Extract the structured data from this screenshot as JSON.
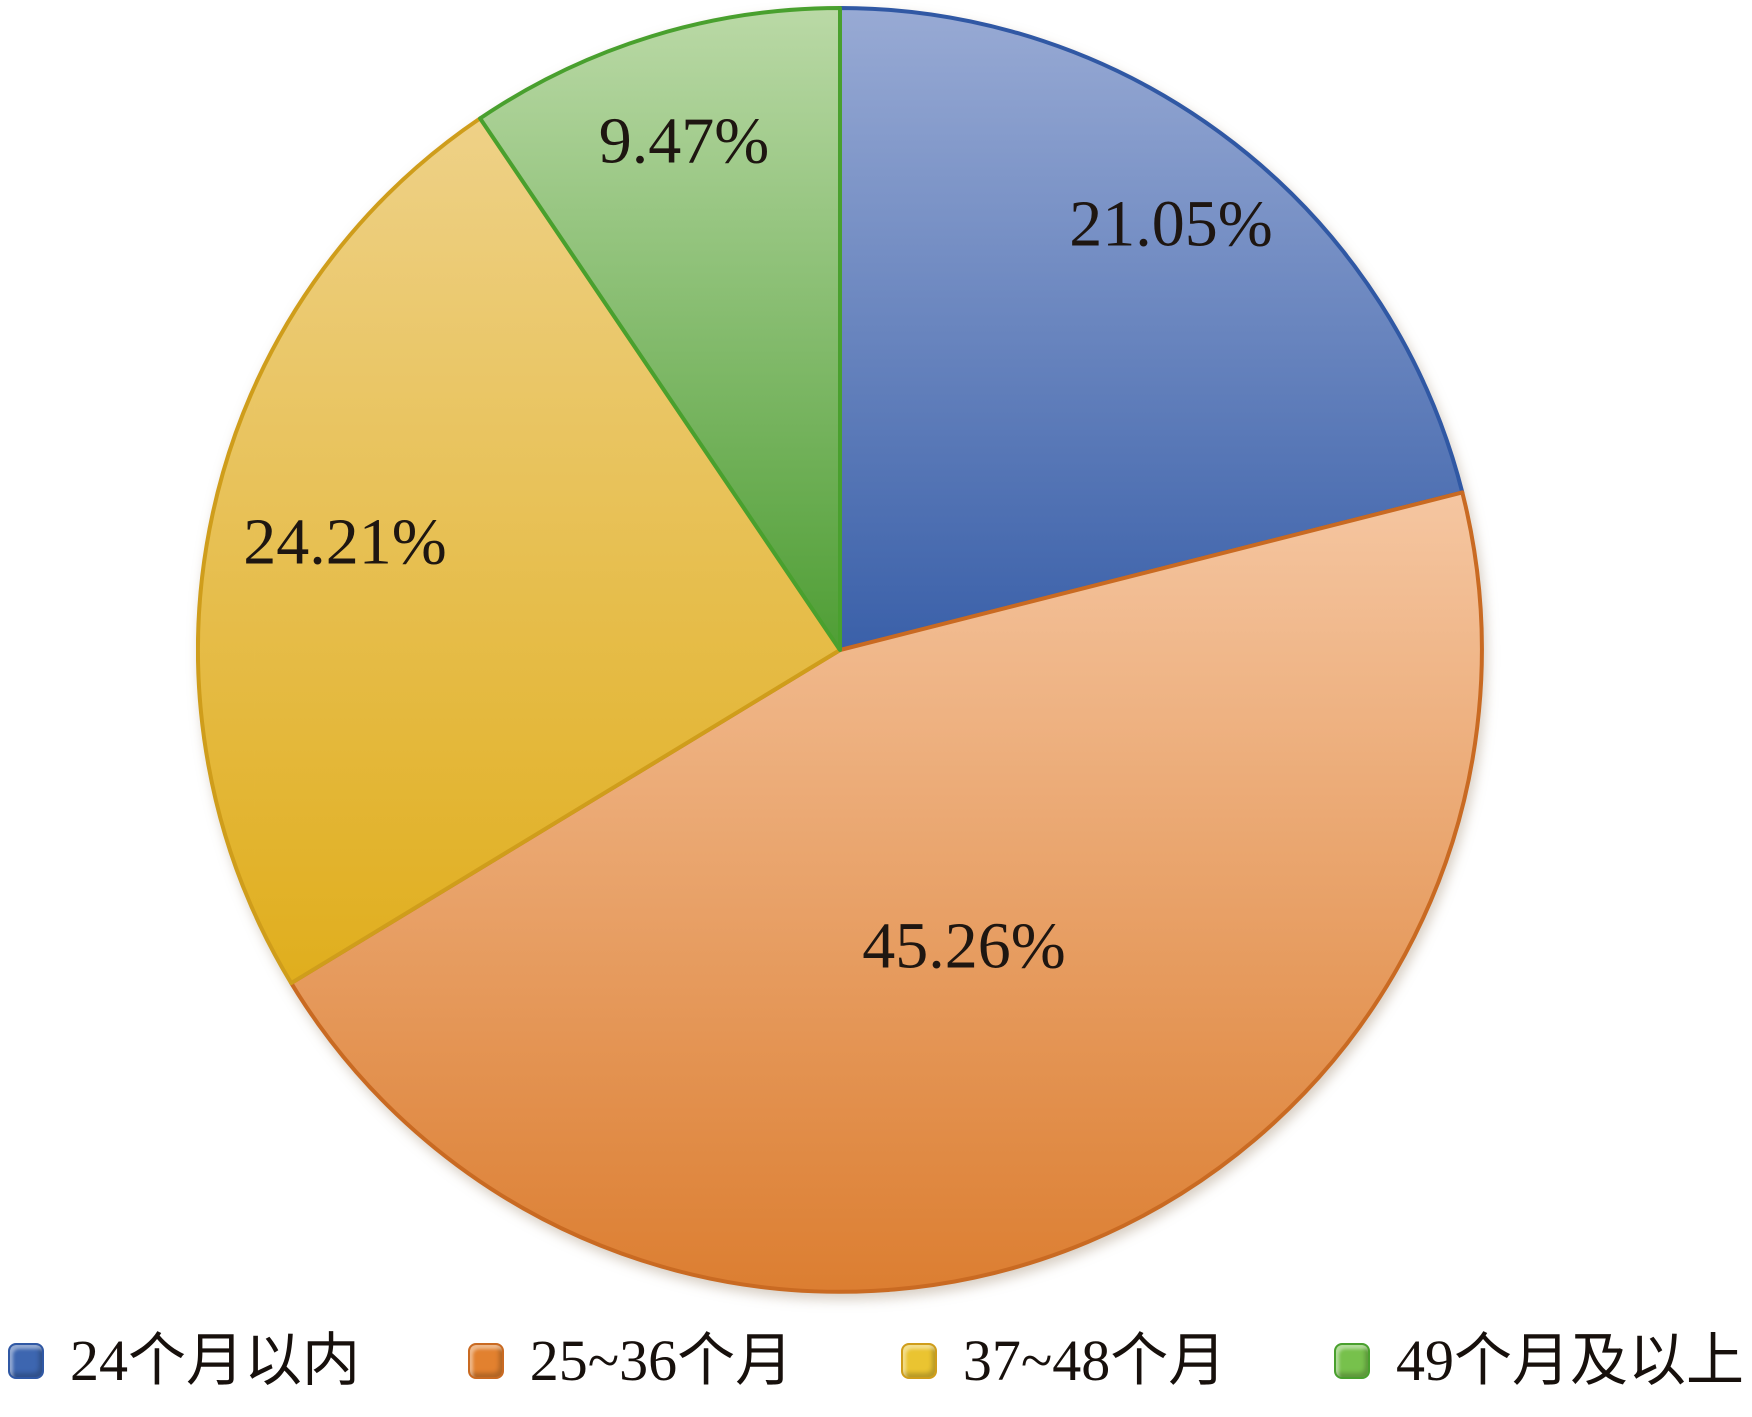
{
  "chart_data": {
    "type": "pie",
    "title": "",
    "categories": [
      "24个月以内",
      "25~36个月",
      "37~48个月",
      "49个月及以上"
    ],
    "values": [
      21.05,
      45.26,
      24.21,
      9.47
    ],
    "start_angle": "top",
    "direction": "clockwise",
    "legend_position": "bottom",
    "label_color": "#1e1611",
    "slices": [
      {
        "label": "24个月以内",
        "value": 21.05,
        "display": "21.05%",
        "fill_top": "#98aad4",
        "fill_bottom": "#3a60a9",
        "border": "#3058a4",
        "swatch": "#3d66b0"
      },
      {
        "label": "25~36个月",
        "value": 45.26,
        "display": "45.26%",
        "fill_top": "#f5c6a1",
        "fill_bottom": "#dc7e31",
        "border": "#c96a22",
        "swatch": "#e2812f"
      },
      {
        "label": "37~48个月",
        "value": 24.21,
        "display": "24.21%",
        "fill_top": "#eed187",
        "fill_bottom": "#e0ae1d",
        "border": "#cf9d1b",
        "swatch": "#eac431"
      },
      {
        "label": "49个月及以上",
        "value": 9.47,
        "display": "9.47%",
        "fill_top": "#bad9a6",
        "fill_bottom": "#4f9e35",
        "border": "#49a02e",
        "swatch": "#77c14c"
      }
    ]
  }
}
